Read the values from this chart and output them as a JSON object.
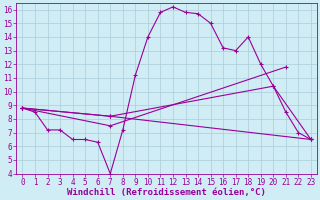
{
  "background_color": "#d0ecf4",
  "grid_color": "#aaccd8",
  "line_color": "#990099",
  "xlabel": "Windchill (Refroidissement éolien,°C)",
  "xlim": [
    -0.5,
    23.5
  ],
  "ylim": [
    4,
    16.5
  ],
  "xticks": [
    0,
    1,
    2,
    3,
    4,
    5,
    6,
    7,
    8,
    9,
    10,
    11,
    12,
    13,
    14,
    15,
    16,
    17,
    18,
    19,
    20,
    21,
    22,
    23
  ],
  "yticks": [
    4,
    5,
    6,
    7,
    8,
    9,
    10,
    11,
    12,
    13,
    14,
    15,
    16
  ],
  "line1_x": [
    0,
    1,
    2,
    3,
    4,
    5,
    6,
    7,
    8,
    9,
    10,
    11,
    12,
    13,
    14,
    15,
    16,
    17,
    18,
    19,
    20,
    21,
    22,
    23
  ],
  "line1_y": [
    8.8,
    8.5,
    7.2,
    7.2,
    6.5,
    6.5,
    6.3,
    4.0,
    7.2,
    11.2,
    14.0,
    15.8,
    16.2,
    15.8,
    15.7,
    15.0,
    13.2,
    13.0,
    14.0,
    12.0,
    10.4,
    8.5,
    7.0,
    6.5
  ],
  "line2_x": [
    0,
    7,
    21
  ],
  "line2_y": [
    8.8,
    7.5,
    11.8
  ],
  "line3_x": [
    0,
    7,
    23
  ],
  "line3_y": [
    8.8,
    8.2,
    6.5
  ],
  "line4_x": [
    0,
    7,
    20,
    23
  ],
  "line4_y": [
    8.8,
    8.2,
    10.4,
    6.5
  ],
  "tick_fontsize": 5.5,
  "xlabel_fontsize": 6.5
}
